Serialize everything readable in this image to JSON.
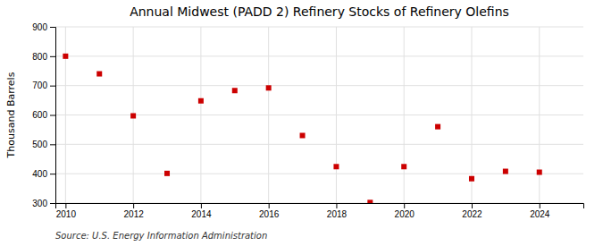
{
  "chart_data": {
    "type": "scatter",
    "title": "Annual Midwest (PADD 2) Refinery Stocks of Refinery Olefins",
    "ylabel": "Thousand Barrels",
    "annotations": [
      "Source: U.S. Energy Information Administration"
    ],
    "x": [
      2010,
      2011,
      2012,
      2013,
      2014,
      2015,
      2016,
      2017,
      2018,
      2019,
      2020,
      2021,
      2022,
      2023,
      2024
    ],
    "values": [
      800,
      740,
      597,
      401,
      648,
      683,
      692,
      530,
      424,
      302,
      424,
      560,
      383,
      408,
      405
    ],
    "color": "#cc0000",
    "marker": "square",
    "xlim": [
      2009.7,
      2025.3
    ],
    "ylim": [
      300,
      900
    ],
    "xticks": [
      2010,
      2012,
      2014,
      2016,
      2018,
      2020,
      2022,
      2024
    ],
    "yticks": [
      300,
      400,
      500,
      600,
      700,
      800,
      900
    ],
    "grid": true
  }
}
